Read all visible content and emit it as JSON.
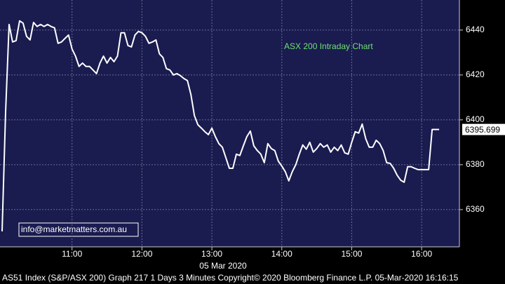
{
  "chart_data": {
    "type": "line",
    "annotation": "ASX 200 Intraday Chart",
    "date_label": "05 Mar 2020",
    "footer": "AS51 Index (S&P/ASX 200) Graph 217 1 Days 3 Minutes Copyright© 2020 Bloomberg Finance L.P. 05-Mar-2020 16:16:15",
    "contact": "info@marketmatters.com.au",
    "last_value": 6395.699,
    "color": "#ffffff",
    "grid": true,
    "x": [
      10,
      10.05,
      10.1,
      10.15,
      10.2,
      10.25,
      10.3,
      10.35,
      10.4,
      10.45,
      10.5,
      10.55,
      10.6,
      10.65,
      10.7,
      10.75,
      10.8,
      10.85,
      10.9,
      10.95,
      11,
      11.05,
      11.1,
      11.15,
      11.2,
      11.25,
      11.3,
      11.35,
      11.4,
      11.45,
      11.5,
      11.55,
      11.6,
      11.65,
      11.7,
      11.75,
      11.8,
      11.85,
      11.9,
      11.95,
      12,
      12.05,
      12.1,
      12.15,
      12.2,
      12.25,
      12.3,
      12.35,
      12.4,
      12.45,
      12.5,
      12.55,
      12.6,
      12.65,
      12.7,
      12.75,
      12.8,
      12.85,
      12.9,
      12.95,
      13,
      13.05,
      13.1,
      13.15,
      13.2,
      13.25,
      13.3,
      13.35,
      13.4,
      13.45,
      13.5,
      13.55,
      13.6,
      13.65,
      13.7,
      13.75,
      13.8,
      13.85,
      13.9,
      13.95,
      14,
      14.05,
      14.1,
      14.15,
      14.2,
      14.25,
      14.3,
      14.35,
      14.4,
      14.45,
      14.5,
      14.55,
      14.6,
      14.65,
      14.7,
      14.75,
      14.8,
      14.85,
      14.9,
      14.95,
      15,
      15.05,
      15.1,
      15.15,
      15.2,
      15.25,
      15.3,
      15.35,
      15.4,
      15.45,
      15.5,
      15.55,
      15.6,
      15.65,
      15.7,
      15.75,
      15.8,
      15.85,
      15.9,
      15.95,
      16,
      16.05,
      16.1,
      16.15,
      16.2,
      16.25
    ],
    "values": [
      6350.3,
      6403.4,
      6442.5,
      6434.7,
      6435.3,
      6444.1,
      6443.1,
      6437.2,
      6435.6,
      6443.4,
      6441.6,
      6442.5,
      6441.6,
      6442.5,
      6441.6,
      6441.0,
      6434.1,
      6434.7,
      6436.3,
      6437.8,
      6431.6,
      6428.4,
      6423.8,
      6425.3,
      6423.8,
      6423.8,
      6422.2,
      6420.6,
      6425.3,
      6428.4,
      6425.3,
      6427.8,
      6425.9,
      6428.4,
      6438.8,
      6438.8,
      6433.1,
      6432.5,
      6437.8,
      6439.4,
      6438.8,
      6437.2,
      6434.1,
      6434.7,
      6435.6,
      6429.4,
      6427.8,
      6422.8,
      6422.2,
      6420.0,
      6420.6,
      6419.7,
      6418.4,
      6417.5,
      6411.3,
      6401.9,
      6397.8,
      6396.3,
      6394.7,
      6393.4,
      6396.3,
      6392.5,
      6389.4,
      6387.8,
      6383.1,
      6378.4,
      6378.4,
      6384.7,
      6384.1,
      6388.4,
      6392.5,
      6395.0,
      6388.4,
      6386.3,
      6384.7,
      6380.9,
      6389.4,
      6387.2,
      6386.3,
      6381.6,
      6379.4,
      6376.9,
      6372.8,
      6376.9,
      6380.0,
      6384.7,
      6388.8,
      6386.9,
      6390.0,
      6385.6,
      6387.2,
      6389.4,
      6387.8,
      6388.8,
      6385.6,
      6387.8,
      6386.3,
      6388.8,
      6385.3,
      6384.7,
      6390.0,
      6394.7,
      6394.1,
      6398.1,
      6391.6,
      6387.8,
      6387.8,
      6390.9,
      6389.4,
      6386.3,
      6380.9,
      6380.6,
      6378.4,
      6375.3,
      6373.1,
      6372.2,
      6379.1,
      6379.1,
      6378.4,
      6377.8,
      6377.8,
      6377.8,
      6377.8,
      6395.7,
      6395.7,
      6395.7
    ],
    "xlim": [
      9.97,
      16.54
    ],
    "xticks": [
      {
        "value": 11,
        "label": "11:00"
      },
      {
        "value": 12,
        "label": "12:00"
      },
      {
        "value": 13,
        "label": "13:00"
      },
      {
        "value": 14,
        "label": "14:00"
      },
      {
        "value": 15,
        "label": "15:00"
      },
      {
        "value": 16,
        "label": "16:00"
      }
    ],
    "ylim": [
      6343.4,
      6453.4
    ],
    "yticks": [
      6360,
      6380,
      6400,
      6420,
      6440
    ]
  }
}
